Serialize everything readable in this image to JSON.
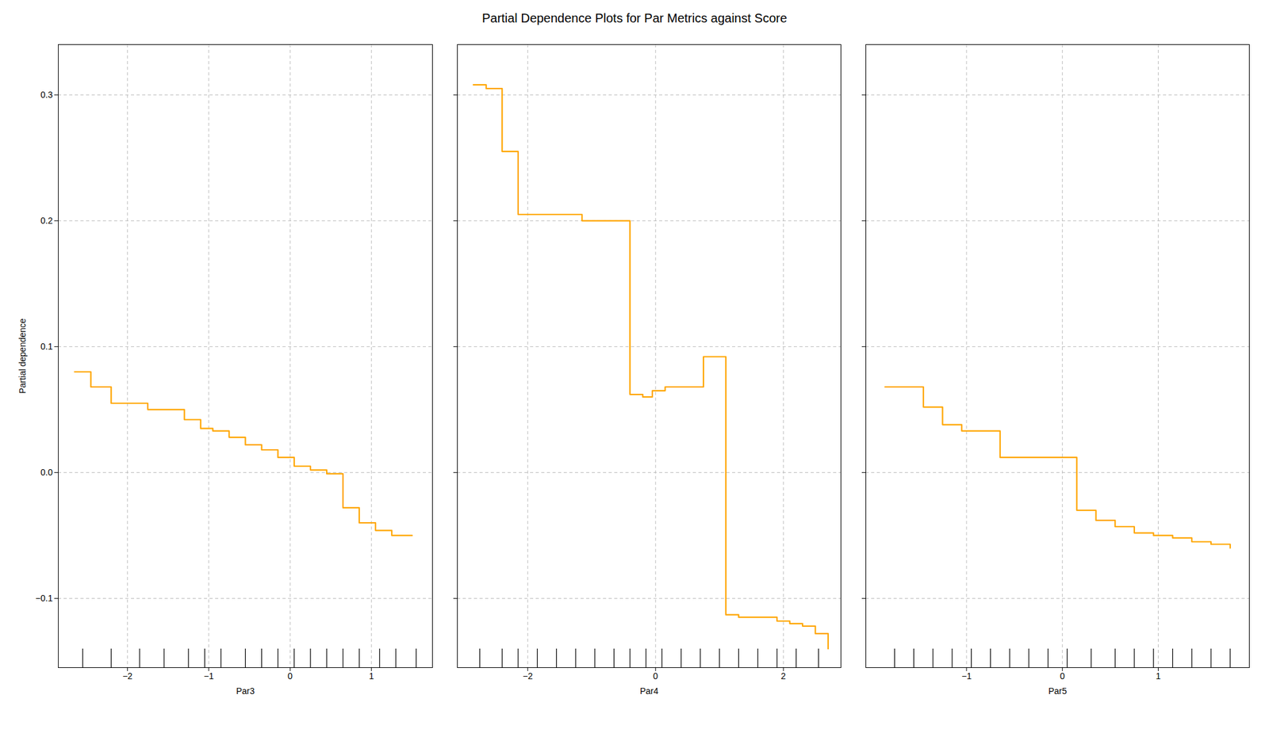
{
  "chart_data": [
    {
      "type": "step",
      "title": "Partial Dependence Plots for Par Metrics against Score",
      "xlabel": "Par3",
      "ylabel": "Partial dependence",
      "color": "#FFA500",
      "grid": true,
      "xlim": [
        -2.85,
        1.75
      ],
      "ylim": [
        -0.155,
        0.34
      ],
      "xticks": [
        -2,
        -1,
        0,
        1
      ],
      "yticks": [
        -0.1,
        {
          "value": 0.0,
          "label": "0.0"
        },
        0.1,
        0.2,
        0.3
      ],
      "x": [
        -2.65,
        -2.45,
        -2.2,
        -2.0,
        -1.75,
        -1.5,
        -1.3,
        -1.1,
        -0.95,
        -0.75,
        -0.55,
        -0.35,
        -0.15,
        0.05,
        0.25,
        0.45,
        0.65,
        0.85,
        1.05,
        1.25,
        1.5
      ],
      "values": [
        0.08,
        0.068,
        0.055,
        0.055,
        0.05,
        0.05,
        0.042,
        0.035,
        0.033,
        0.028,
        0.022,
        0.018,
        0.012,
        0.005,
        0.002,
        -0.001,
        -0.028,
        -0.04,
        -0.046,
        -0.05,
        -0.05
      ],
      "rug": [
        -2.55,
        -2.2,
        -1.85,
        -1.55,
        -1.25,
        -1.05,
        -0.85,
        -0.55,
        -0.35,
        -0.15,
        0.05,
        0.25,
        0.45,
        0.65,
        0.85,
        1.1,
        1.3,
        1.55
      ]
    },
    {
      "type": "step",
      "xlabel": "Par4",
      "color": "#FFA500",
      "grid": true,
      "tick_labels": "x",
      "xlim": [
        -3.1,
        2.9
      ],
      "ylim": [
        -0.155,
        0.34
      ],
      "xticks": [
        -2,
        0,
        2
      ],
      "yticks": [
        -0.1,
        {
          "value": 0.0,
          "label": "0.0"
        },
        0.1,
        0.2,
        0.3
      ],
      "x": [
        -2.85,
        -2.65,
        -2.4,
        -2.15,
        -1.9,
        -1.65,
        -1.4,
        -1.15,
        -0.9,
        -0.65,
        -0.4,
        -0.2,
        -0.05,
        0.15,
        0.35,
        0.55,
        0.75,
        0.92,
        1.1,
        1.3,
        1.5,
        1.7,
        1.9,
        2.1,
        2.3,
        2.5,
        2.7
      ],
      "values": [
        0.308,
        0.305,
        0.255,
        0.205,
        0.205,
        0.205,
        0.205,
        0.2,
        0.2,
        0.2,
        0.062,
        0.06,
        0.065,
        0.068,
        0.068,
        0.068,
        0.092,
        0.092,
        -0.113,
        -0.115,
        -0.115,
        -0.115,
        -0.118,
        -0.12,
        -0.122,
        -0.128,
        -0.14
      ],
      "rug": [
        -2.75,
        -2.4,
        -2.15,
        -1.85,
        -1.55,
        -1.25,
        -0.95,
        -0.65,
        -0.4,
        -0.15,
        0.1,
        0.4,
        0.7,
        1.0,
        1.3,
        1.6,
        1.9,
        2.2,
        2.55
      ]
    },
    {
      "type": "step",
      "xlabel": "Par5",
      "color": "#FFA500",
      "grid": true,
      "tick_labels": "x",
      "xlim": [
        -2.05,
        1.95
      ],
      "ylim": [
        -0.155,
        0.34
      ],
      "xticks": [
        -1,
        0,
        1
      ],
      "yticks": [
        -0.1,
        {
          "value": 0.0,
          "label": "0.0"
        },
        0.1,
        0.2,
        0.3
      ],
      "x": [
        -1.85,
        -1.65,
        -1.45,
        -1.25,
        -1.05,
        -0.85,
        -0.65,
        -0.45,
        -0.25,
        -0.05,
        0.15,
        0.35,
        0.55,
        0.75,
        0.95,
        1.15,
        1.35,
        1.55,
        1.75
      ],
      "values": [
        0.068,
        0.068,
        0.052,
        0.038,
        0.033,
        0.033,
        0.012,
        0.012,
        0.012,
        0.012,
        -0.03,
        -0.038,
        -0.043,
        -0.048,
        -0.05,
        -0.052,
        -0.055,
        -0.057,
        -0.06
      ],
      "rug": [
        -1.75,
        -1.55,
        -1.35,
        -1.15,
        -0.95,
        -0.75,
        -0.55,
        -0.35,
        -0.15,
        0.05,
        0.3,
        0.55,
        0.75,
        0.95,
        1.15,
        1.35,
        1.55,
        1.75
      ]
    }
  ]
}
